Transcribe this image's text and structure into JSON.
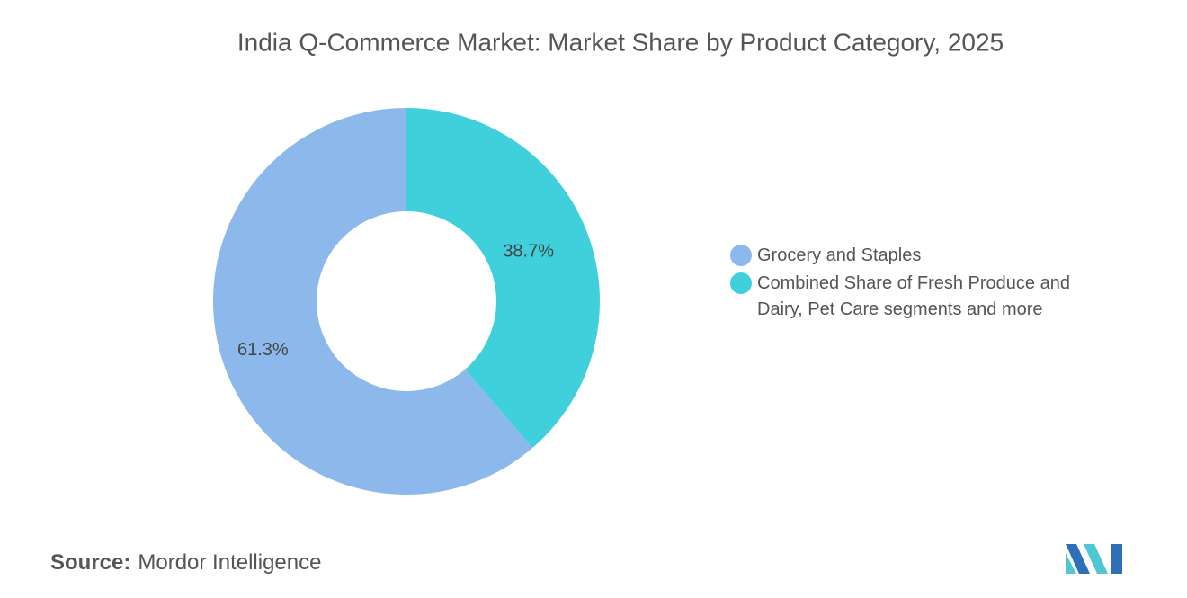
{
  "chart_data": {
    "type": "pie",
    "donut": true,
    "title": "India Q-Commerce Market: Market Share by Product Category, 2025",
    "categories": [
      "Grocery and Staples",
      "Combined Share of Fresh Produce and Dairy, Pet Care segments and more"
    ],
    "values": [
      61.3,
      38.7
    ],
    "value_labels": [
      "61.3%",
      "38.7%"
    ],
    "colors": [
      "#8db8ec",
      "#40d0dc"
    ],
    "legend": "right",
    "source_label": "Source:",
    "source": "Mordor Intelligence"
  }
}
